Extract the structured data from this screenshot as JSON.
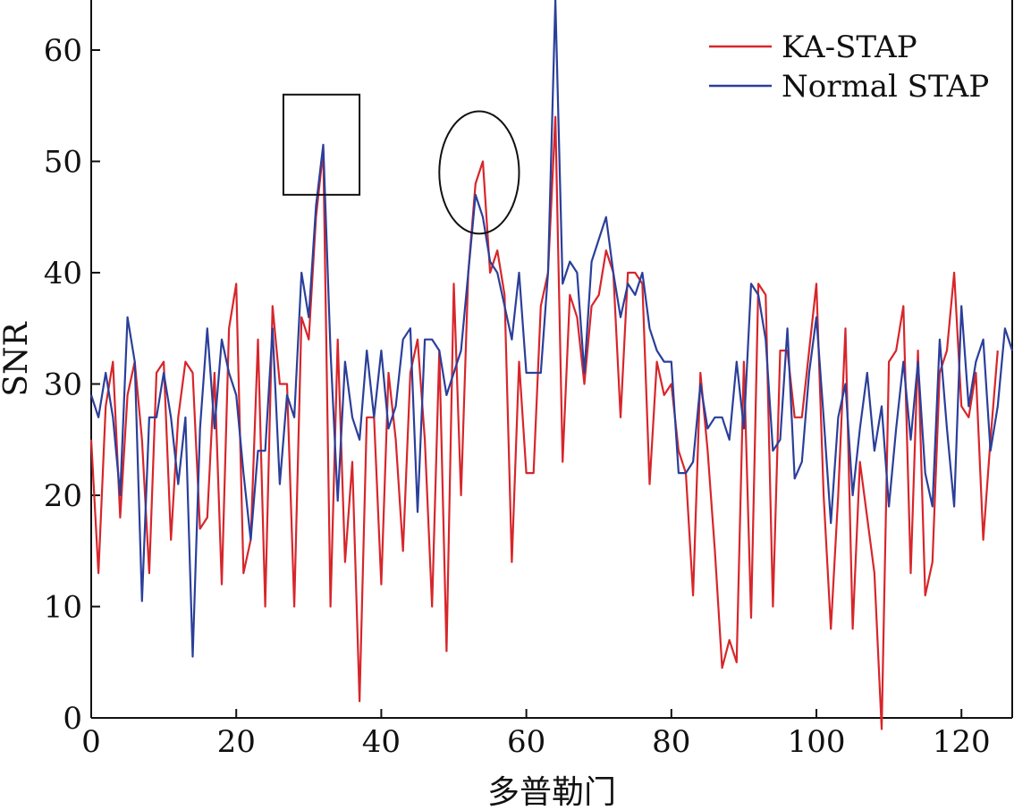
{
  "chart_data": {
    "type": "line",
    "xlabel": "多普勒门",
    "ylabel": "SNR",
    "xlim": [
      0,
      127
    ],
    "ylim": [
      0,
      64
    ],
    "xticks": [
      0,
      20,
      40,
      60,
      80,
      100,
      120
    ],
    "yticks": [
      0,
      10,
      20,
      30,
      40,
      50,
      60
    ],
    "grid": false,
    "legend_position": "top-right",
    "series": [
      {
        "name": "KA-STAP",
        "color": "#d7262b",
        "values": [
          25,
          13,
          28,
          32,
          18,
          29,
          32,
          25,
          13,
          31,
          32,
          16,
          27,
          32,
          31,
          17,
          18,
          31,
          12,
          35,
          39,
          13,
          16,
          34,
          10,
          37,
          30,
          30,
          10,
          36,
          34,
          45,
          51,
          10,
          34,
          14,
          23,
          1.5,
          27,
          27,
          12,
          31,
          25,
          15,
          31,
          34,
          25,
          10,
          33,
          6,
          39,
          20,
          40,
          48,
          50,
          40,
          42,
          38,
          14,
          32,
          22,
          22,
          37,
          40,
          54,
          23,
          38,
          36,
          30,
          37,
          38,
          42,
          40,
          27,
          40,
          40,
          39,
          21,
          32,
          29,
          30,
          24,
          22,
          11,
          31,
          24,
          15,
          4.5,
          7,
          5,
          32,
          9,
          39,
          38,
          10,
          33,
          33,
          27,
          27,
          33,
          39,
          20,
          8,
          20,
          35,
          8,
          23,
          18,
          13,
          -1,
          32,
          33,
          37,
          13,
          33,
          11,
          14,
          31,
          33,
          40,
          28,
          27,
          31,
          16,
          25,
          33
        ],
        "annotation": "circle"
      },
      {
        "name": "Normal STAP",
        "color": "#2b3f9a",
        "values": [
          29,
          27,
          31,
          27,
          20,
          36,
          32,
          10.5,
          27,
          27,
          31,
          27,
          21,
          27,
          5.5,
          26,
          35,
          26,
          34,
          31,
          29,
          22,
          16,
          24,
          24,
          35,
          21,
          29,
          27,
          40,
          36,
          46,
          51.5,
          33,
          19.5,
          32,
          27,
          25,
          33,
          27,
          33,
          26,
          28,
          34,
          35,
          18.5,
          34,
          34,
          33,
          29,
          31,
          33,
          40,
          47,
          45,
          41,
          40,
          37,
          34,
          40,
          31,
          31,
          31,
          40,
          64.5,
          39,
          41,
          40,
          31,
          41,
          43,
          45,
          40,
          36,
          39,
          38,
          40,
          35,
          33,
          32,
          32,
          22,
          22,
          23,
          30,
          26,
          27,
          27,
          25,
          32,
          26,
          39,
          38,
          34,
          24,
          25,
          35,
          21.5,
          23,
          31,
          36,
          27,
          17.5,
          27,
          30,
          20,
          26,
          31,
          24,
          28,
          19,
          26,
          32,
          25,
          32,
          22,
          19,
          34,
          26,
          19,
          37,
          28,
          32,
          34,
          24,
          28,
          35,
          33
        ]
      }
    ],
    "annotations": [
      {
        "shape": "rectangle",
        "x": [
          26.5,
          37
        ],
        "y": [
          47,
          56
        ]
      },
      {
        "shape": "ellipse",
        "cx": 53.5,
        "cy": 49,
        "rx": 5.5,
        "ry": 5.5
      }
    ]
  }
}
